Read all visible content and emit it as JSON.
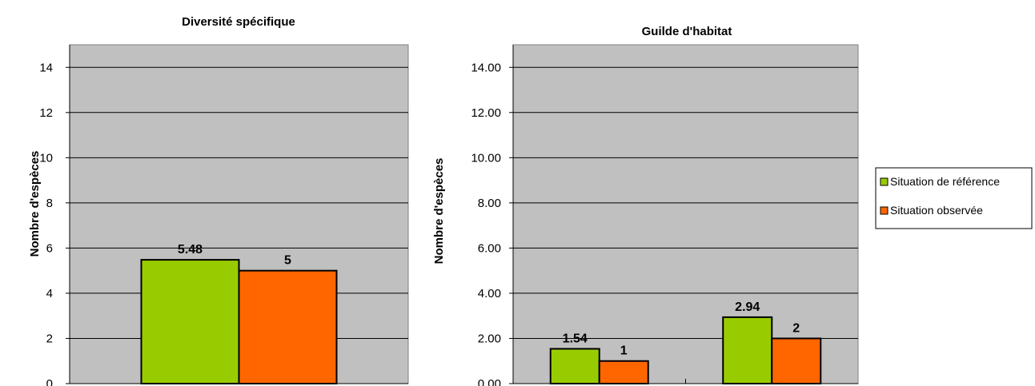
{
  "chart_data": [
    {
      "type": "bar",
      "title": "Diversité spécifique",
      "ylabel": "Nombre d'espèces",
      "xlabel": "",
      "categories": [
        ""
      ],
      "ylim": [
        0,
        15
      ],
      "yticks": [
        "0",
        "2",
        "4",
        "6",
        "8",
        "10",
        "12",
        "14"
      ],
      "ytick_values": [
        0,
        2,
        4,
        6,
        8,
        10,
        12,
        14
      ],
      "grid": true,
      "series": [
        {
          "name": "Situation de référence",
          "values": [
            5.48
          ],
          "labels": [
            "5.48"
          ]
        },
        {
          "name": "Situation observée",
          "values": [
            5
          ],
          "labels": [
            "5"
          ]
        }
      ]
    },
    {
      "type": "bar",
      "title": "Guilde d'habitat",
      "ylabel": "Nombre d'espèces",
      "xlabel": "",
      "categories": [
        "",
        ""
      ],
      "ylim": [
        0,
        15
      ],
      "yticks": [
        "0.00",
        "2.00",
        "4.00",
        "6.00",
        "8.00",
        "10.00",
        "12.00",
        "14.00"
      ],
      "ytick_values": [
        0,
        2,
        4,
        6,
        8,
        10,
        12,
        14
      ],
      "grid": true,
      "series": [
        {
          "name": "Situation de référence",
          "values": [
            1.54,
            2.94
          ],
          "labels": [
            "1.54",
            "2.94"
          ]
        },
        {
          "name": "Situation observée",
          "values": [
            1,
            2
          ],
          "labels": [
            "1",
            "2"
          ]
        }
      ]
    }
  ],
  "legend": {
    "placement": "right",
    "items": [
      {
        "label": "Situation de référence",
        "color": "#99cc00"
      },
      {
        "label": "Situation observée",
        "color": "#ff6600"
      }
    ]
  },
  "colors": {
    "plot_background": "#c0c0c0",
    "series": [
      "#99cc00",
      "#ff6600"
    ]
  }
}
